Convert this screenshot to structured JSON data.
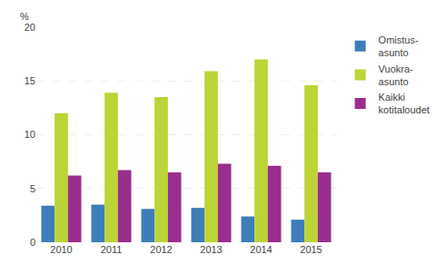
{
  "chart_data": {
    "type": "bar",
    "categories": [
      "2010",
      "2011",
      "2012",
      "2013",
      "2014",
      "2015"
    ],
    "series": [
      {
        "name": "Omistus-\nasunto",
        "color": "#3d7dba",
        "values": [
          3.4,
          3.5,
          3.1,
          3.2,
          2.4,
          2.1
        ]
      },
      {
        "name": "Vuokra-\nasunto",
        "color": "#bcd435",
        "values": [
          12.0,
          13.9,
          13.5,
          15.9,
          17.0,
          14.6
        ]
      },
      {
        "name": "Kaikki\nkotitaloudet",
        "color": "#9b2d8e",
        "values": [
          6.2,
          6.7,
          6.5,
          7.3,
          7.1,
          6.5
        ]
      }
    ],
    "ylabel": "%",
    "ylim": [
      0,
      20
    ],
    "yticks": [
      0,
      5,
      10,
      15,
      20
    ],
    "grid": true,
    "legend": "upper right"
  }
}
